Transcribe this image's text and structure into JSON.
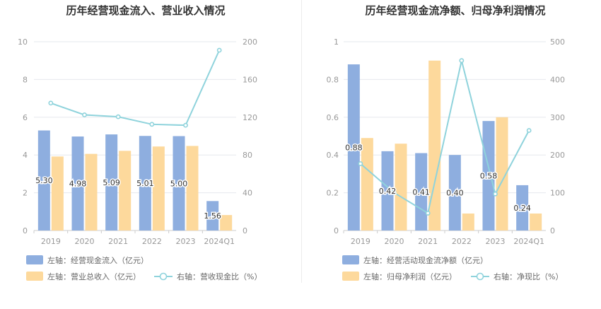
{
  "chart_data": [
    {
      "type": "bar",
      "title": "历年经营现金流入、营业收入情况",
      "categories": [
        "2019",
        "2020",
        "2021",
        "2022",
        "2023",
        "2024Q1"
      ],
      "left_axis": {
        "ylim": [
          0,
          10
        ],
        "ticks": [
          "0",
          "2",
          "4",
          "6",
          "8",
          "10"
        ]
      },
      "right_axis": {
        "ylim": [
          0,
          200
        ],
        "ticks": [
          "0",
          "40",
          "80",
          "120",
          "160",
          "200"
        ]
      },
      "series": [
        {
          "name": "左轴：经营现金流入（亿元）",
          "kind": "bar",
          "axis": "left",
          "color": "#8eaedf",
          "values": [
            5.3,
            4.98,
            5.09,
            5.01,
            5.0,
            1.56
          ],
          "labels": [
            "5.30",
            "4.98",
            "5.09",
            "5.01",
            "5.00",
            "1.56"
          ]
        },
        {
          "name": "左轴：营业总收入（亿元）",
          "kind": "bar",
          "axis": "left",
          "color": "#fdd99c",
          "values": [
            3.92,
            4.06,
            4.22,
            4.45,
            4.48,
            0.82
          ]
        },
        {
          "name": "右轴：营收现金比（%）",
          "kind": "line",
          "axis": "right",
          "color": "#8fd3dc",
          "values": [
            135,
            122.5,
            120.5,
            112.5,
            111.5,
            191
          ]
        }
      ]
    },
    {
      "type": "bar",
      "title": "历年经营现金流净额、归母净利润情况",
      "categories": [
        "2019",
        "2020",
        "2021",
        "2022",
        "2023",
        "2024Q1"
      ],
      "left_axis": {
        "ylim": [
          0,
          1
        ],
        "ticks": [
          "0",
          "0.2",
          "0.4",
          "0.6",
          "0.8",
          "1"
        ]
      },
      "right_axis": {
        "ylim": [
          0,
          500
        ],
        "ticks": [
          "0",
          "100",
          "200",
          "300",
          "400",
          "500"
        ]
      },
      "series": [
        {
          "name": "左轴：经营活动现金流净额（亿元）",
          "kind": "bar",
          "axis": "left",
          "color": "#8eaedf",
          "values": [
            0.88,
            0.42,
            0.41,
            0.4,
            0.58,
            0.24
          ],
          "labels": [
            "0.88",
            "0.42",
            "0.41",
            "0.40",
            "0.58",
            "0.24"
          ]
        },
        {
          "name": "左轴：归母净利润（亿元）",
          "kind": "bar",
          "axis": "left",
          "color": "#fdd99c",
          "values": [
            0.49,
            0.46,
            0.9,
            0.09,
            0.6,
            0.09
          ]
        },
        {
          "name": "右轴：净现比（%）",
          "kind": "line",
          "axis": "right",
          "color": "#8fd3dc",
          "values": [
            177,
            100,
            46,
            450,
            97,
            265
          ]
        }
      ]
    }
  ]
}
